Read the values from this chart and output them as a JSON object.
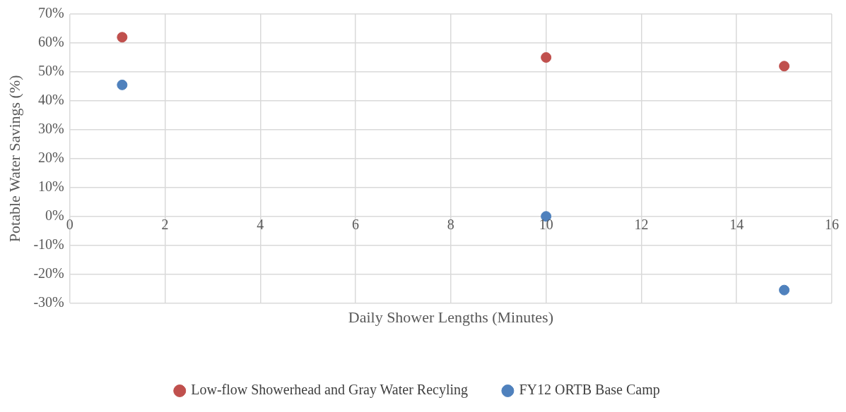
{
  "chart_data": {
    "type": "scatter",
    "xlabel": "Daily Shower Lengths (Minutes)",
    "ylabel": "Potable Water Savings (%)",
    "series": [
      {
        "name": "Low-flow Showerhead and Gray Water Recyling",
        "color": "#c0504d",
        "x": [
          1.1,
          10,
          15
        ],
        "values": [
          62,
          55,
          52
        ]
      },
      {
        "name": "FY12 ORTB Base Camp",
        "color": "#4f81bd",
        "x": [
          1.1,
          10,
          15
        ],
        "values": [
          45.5,
          0,
          -25.5
        ]
      }
    ],
    "xlim": [
      0,
      16
    ],
    "xticks": [
      0,
      2,
      4,
      6,
      8,
      10,
      12,
      14,
      16
    ],
    "ylim": [
      -30,
      70
    ],
    "yticks": [
      {
        "value": -30,
        "label": "-30%"
      },
      {
        "value": -20,
        "label": "-20%"
      },
      {
        "value": -10,
        "label": "-10%"
      },
      {
        "value": 0,
        "label": "0%"
      },
      {
        "value": 10,
        "label": "10%"
      },
      {
        "value": 20,
        "label": "20%"
      },
      {
        "value": 30,
        "label": "30%"
      },
      {
        "value": 40,
        "label": "40%"
      },
      {
        "value": 50,
        "label": "50%"
      },
      {
        "value": 60,
        "label": "60%"
      },
      {
        "value": 70,
        "label": "70%"
      }
    ],
    "grid": true,
    "legend": "bottom",
    "marker": "circle"
  }
}
